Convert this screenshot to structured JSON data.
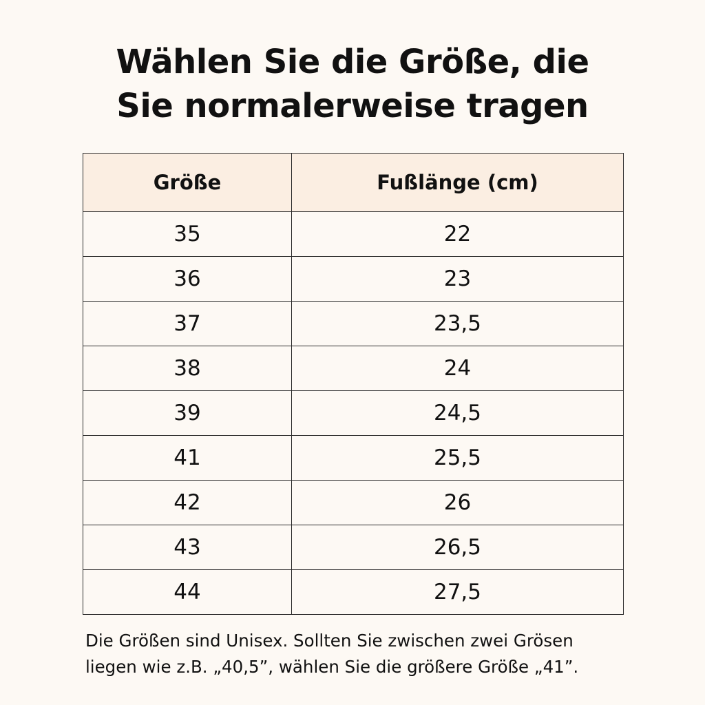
{
  "title": {
    "line1": "Wählen Sie die Größe, die",
    "line2": "Sie normalerweise tragen"
  },
  "table": {
    "headers": [
      "Größe",
      "Fußlänge (cm)"
    ],
    "rows": [
      [
        "35",
        "22"
      ],
      [
        "36",
        "23"
      ],
      [
        "37",
        "23,5"
      ],
      [
        "38",
        "24"
      ],
      [
        "39",
        "24,5"
      ],
      [
        "41",
        "25,5"
      ],
      [
        "42",
        "26"
      ],
      [
        "43",
        "26,5"
      ],
      [
        "44",
        "27,5"
      ]
    ]
  },
  "note": {
    "line1": "Die Größen sind Unisex. Sollten Sie zwischen zwei Grösen",
    "line2": "liegen wie z.B. „40,5”, wählen Sie die größere Größe „41”."
  },
  "colors": {
    "background": "#fdf9f4",
    "header_fill": "#fbeee2",
    "border": "#2a2a2a",
    "text": "#111111"
  }
}
